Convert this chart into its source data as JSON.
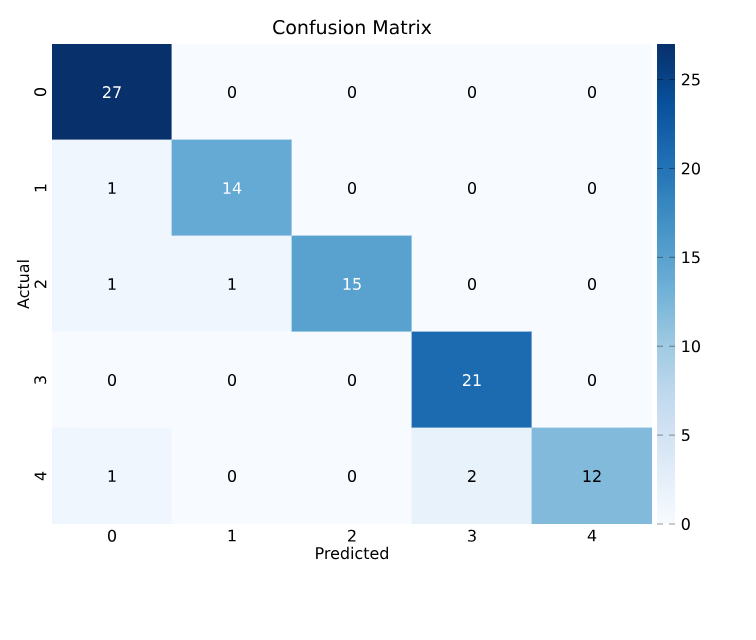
{
  "chart_data": {
    "type": "heatmap",
    "title": "Confusion Matrix",
    "xlabel": "Predicted",
    "ylabel": "Actual",
    "categories": [
      "0",
      "1",
      "2",
      "3",
      "4"
    ],
    "y_categories": [
      "0",
      "1",
      "2",
      "3",
      "4"
    ],
    "cells": [
      [
        27,
        0,
        0,
        0,
        0
      ],
      [
        1,
        14,
        0,
        0,
        0
      ],
      [
        1,
        1,
        15,
        0,
        0
      ],
      [
        0,
        0,
        0,
        21,
        0
      ],
      [
        1,
        0,
        0,
        2,
        12
      ]
    ],
    "clim": [
      0,
      27
    ],
    "cticks": [
      0,
      5,
      10,
      15,
      20,
      25
    ],
    "data_labels": true
  }
}
